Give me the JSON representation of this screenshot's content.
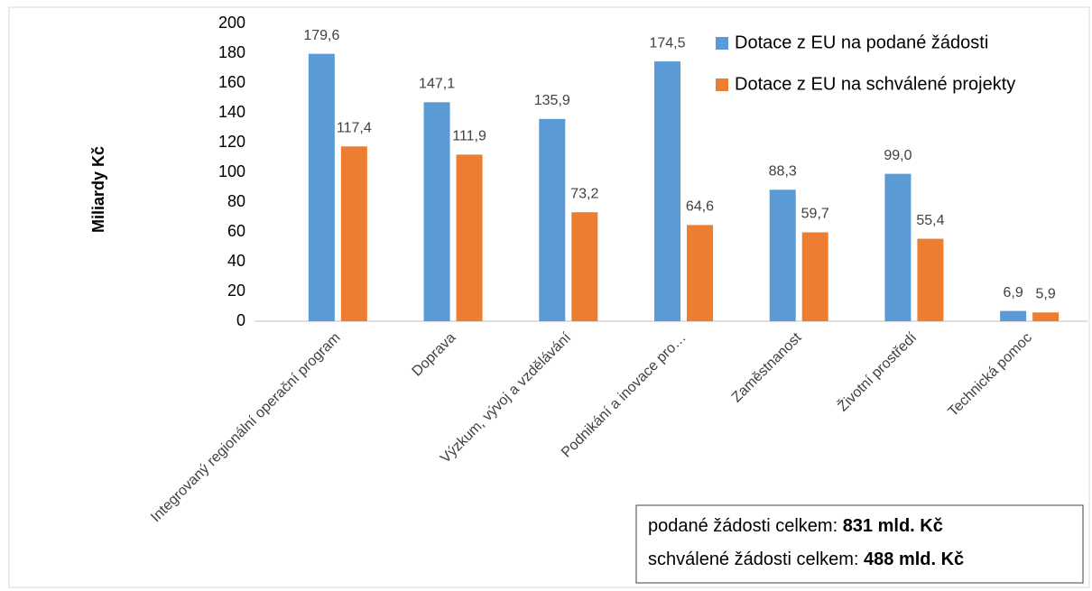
{
  "chart_data": {
    "type": "bar",
    "y_label": "Miliardy Kč",
    "categories": [
      "Integrovaný regionální operační program",
      "Doprava",
      "Výzkum, vývoj a vzdělávání",
      "Podnikání a inovace pro…",
      "Zaměstnanost",
      "Životní prostředí",
      "Technická pomoc"
    ],
    "series": [
      {
        "name": "Dotace z EU na podané žádosti",
        "color": "#5b9bd5",
        "values": [
          179.6,
          147.1,
          135.9,
          174.5,
          88.3,
          99.0,
          6.9
        ],
        "value_labels": [
          "179,6",
          "147,1",
          "135,9",
          "174,5",
          "88,3",
          "99,0",
          "6,9"
        ]
      },
      {
        "name": "Dotace z EU na schválené projekty",
        "color": "#ed7d31",
        "values": [
          117.4,
          111.9,
          73.2,
          64.6,
          59.7,
          55.4,
          5.9
        ],
        "value_labels": [
          "117,4",
          "111,9",
          "73,2",
          "64,6",
          "59,7",
          "55,4",
          "5,9"
        ]
      }
    ],
    "ylim": [
      0,
      200
    ],
    "yticks": [
      0,
      20,
      40,
      60,
      80,
      100,
      120,
      140,
      160,
      180,
      200
    ],
    "legend": "top-right",
    "annotations": [
      {
        "text": "podané žádosti celkem: ",
        "bold": "831 mld. Kč"
      },
      {
        "text": "schválené žádosti celkem: ",
        "bold": "488 mld. Kč"
      }
    ]
  }
}
